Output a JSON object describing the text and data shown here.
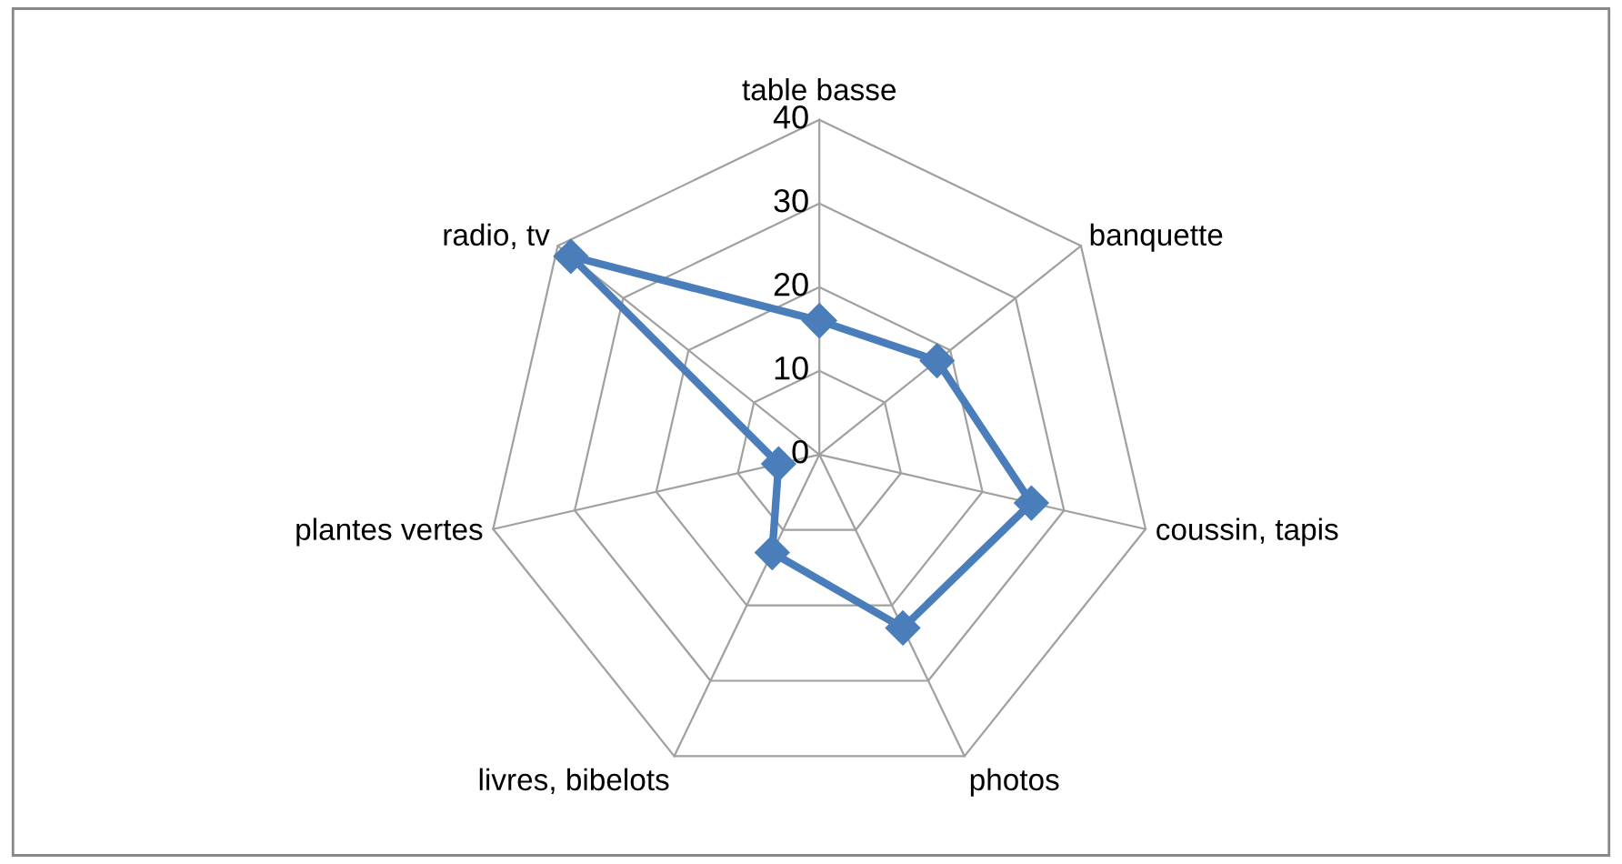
{
  "chart_data": {
    "type": "radar",
    "categories": [
      "table basse",
      "banquette",
      "coussin, tapis",
      "photos",
      "livres, bibelots",
      "plantes vertes",
      "radio, tv"
    ],
    "series": [
      {
        "color": "#4a7ebb",
        "values": [
          16,
          18,
          26,
          23,
          13,
          5,
          38
        ]
      }
    ],
    "ylim": [
      0,
      40
    ],
    "yticks": [
      0,
      10,
      20,
      30,
      40
    ],
    "grid": true,
    "marker": "diamond",
    "line_style": "solid"
  }
}
